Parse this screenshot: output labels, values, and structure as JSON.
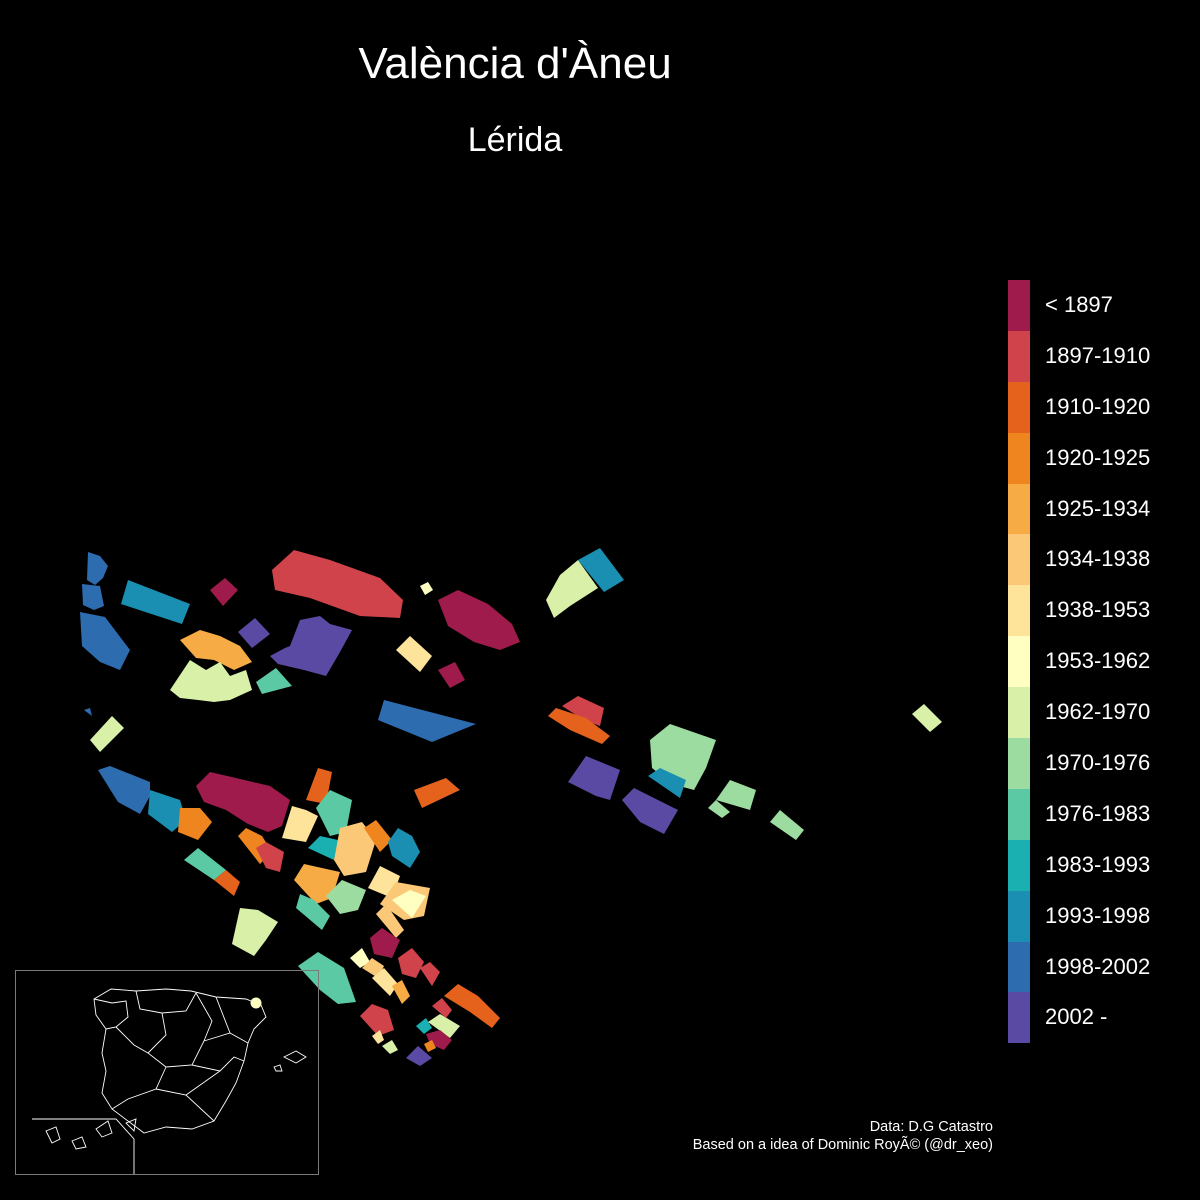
{
  "title": "València d'Àneu",
  "subtitle": "Lérida",
  "legend": {
    "items": [
      {
        "label": "< 1897",
        "color": "#9e1b4b"
      },
      {
        "label": "1897-1910",
        "color": "#d0434a"
      },
      {
        "label": "1910-1920",
        "color": "#e5621c"
      },
      {
        "label": "1920-1925",
        "color": "#ee851f"
      },
      {
        "label": "1925-1934",
        "color": "#f6ab45"
      },
      {
        "label": "1934-1938",
        "color": "#fbc877"
      },
      {
        "label": "1938-1953",
        "color": "#fde49a"
      },
      {
        "label": "1953-1962",
        "color": "#ffffc1"
      },
      {
        "label": "1962-1970",
        "color": "#d8f0a8"
      },
      {
        "label": "1970-1976",
        "color": "#9ddca0"
      },
      {
        "label": "1976-1983",
        "color": "#5cc9a5"
      },
      {
        "label": "1983-1993",
        "color": "#1ab0b2"
      },
      {
        "label": "1993-1998",
        "color": "#1a8fb2"
      },
      {
        "label": "1998-2002",
        "color": "#2e6cb0"
      },
      {
        "label": "2002 -",
        "color": "#5b4aa3"
      }
    ]
  },
  "credits": {
    "line1": "Data: D.G Catastro",
    "line2": "Based on a idea of Dominic RoyÃ© (@dr_xeo)"
  },
  "inset": {
    "marker_color": "#ffffc1",
    "outline_color": "#ffffff"
  }
}
